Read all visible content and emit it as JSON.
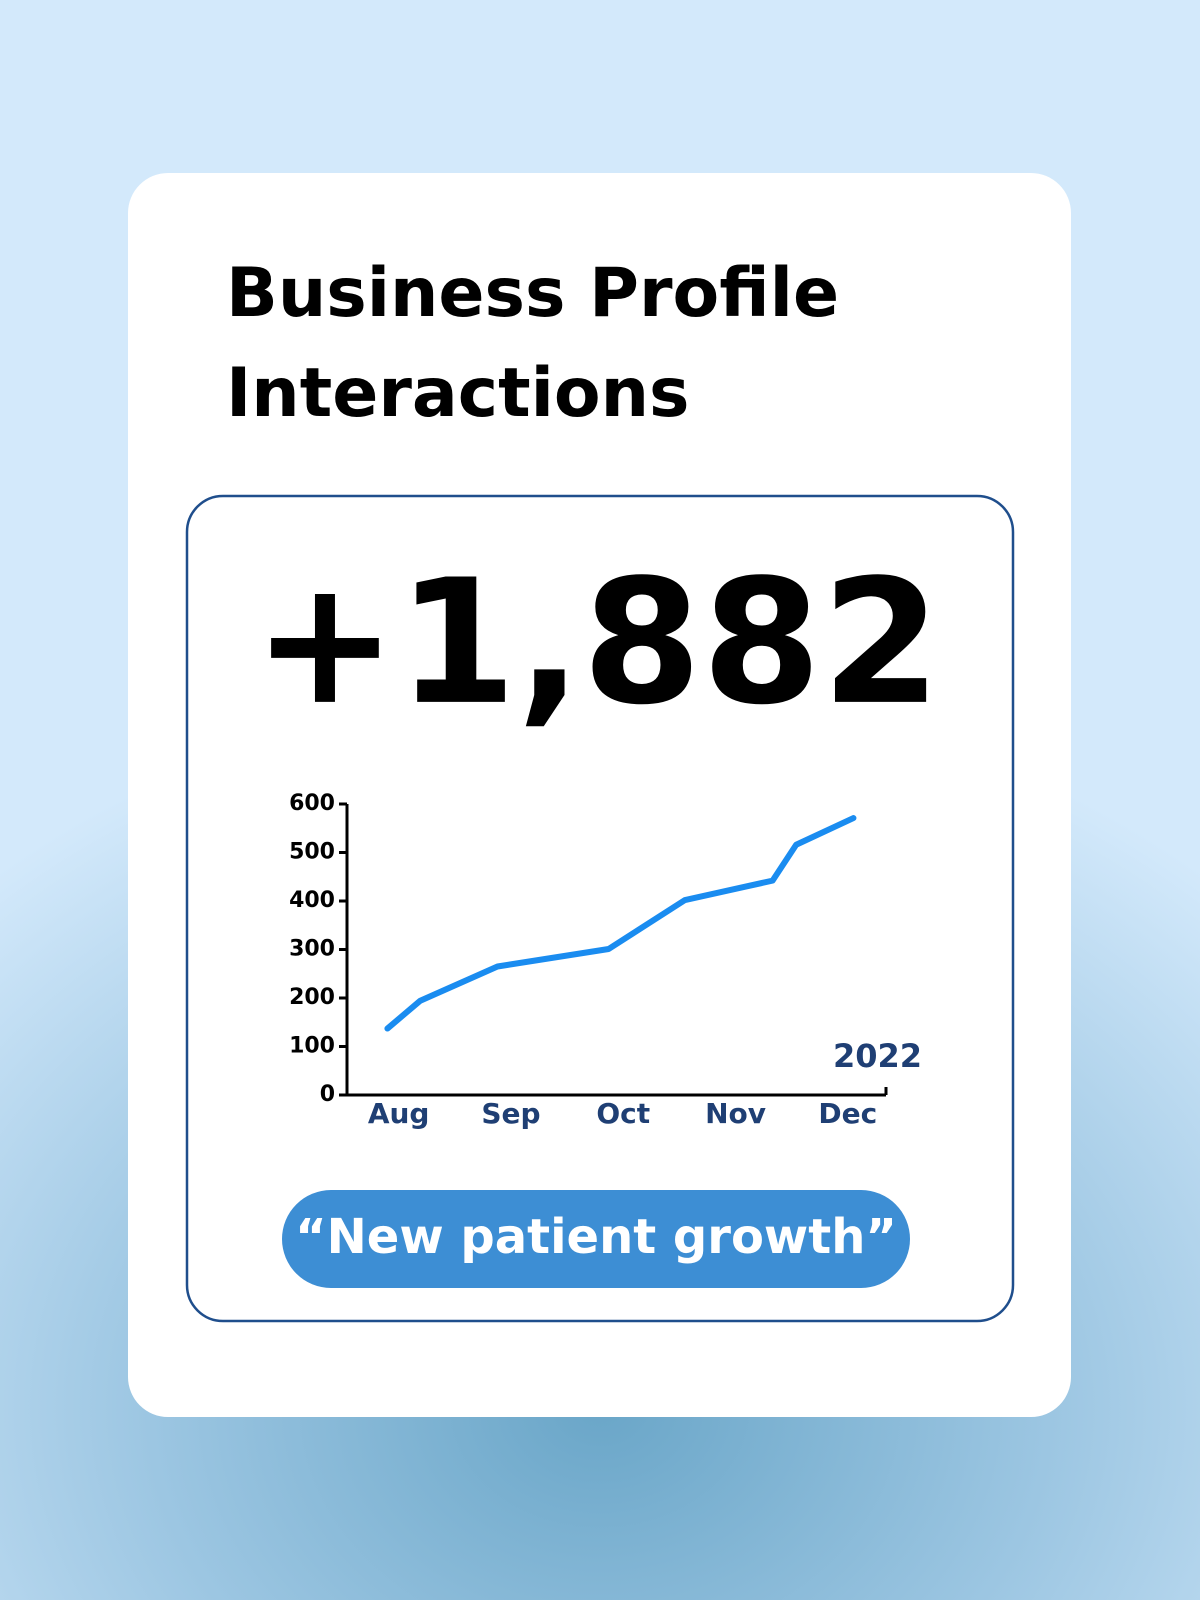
{
  "chart_data": {
    "type": "line",
    "title": "Business Profile Interactions",
    "subtitle": "+1,882",
    "annotations": [
      "2022",
      "“New patient growth”"
    ],
    "x": [
      -0.1,
      0.19,
      0.88,
      1.87,
      2.55,
      3.33,
      3.54,
      4.05
    ],
    "series": [
      {
        "name": "Interactions",
        "color": "#1a8cf0",
        "values": [
          137,
          194,
          265,
          301,
          402,
          442,
          516,
          571
        ]
      }
    ],
    "xlim": [
      -0.46,
      4.34
    ],
    "xticks": [
      {
        "value": 0,
        "label": "Aug"
      },
      {
        "value": 1,
        "label": "Sep"
      },
      {
        "value": 2,
        "label": "Oct"
      },
      {
        "value": 3,
        "label": "Nov"
      },
      {
        "value": 4,
        "label": "Dec"
      }
    ],
    "ylim": [
      0,
      600
    ],
    "yticks": [
      0,
      100,
      200,
      300,
      400,
      500,
      600
    ],
    "grid": false,
    "legend": false
  }
}
